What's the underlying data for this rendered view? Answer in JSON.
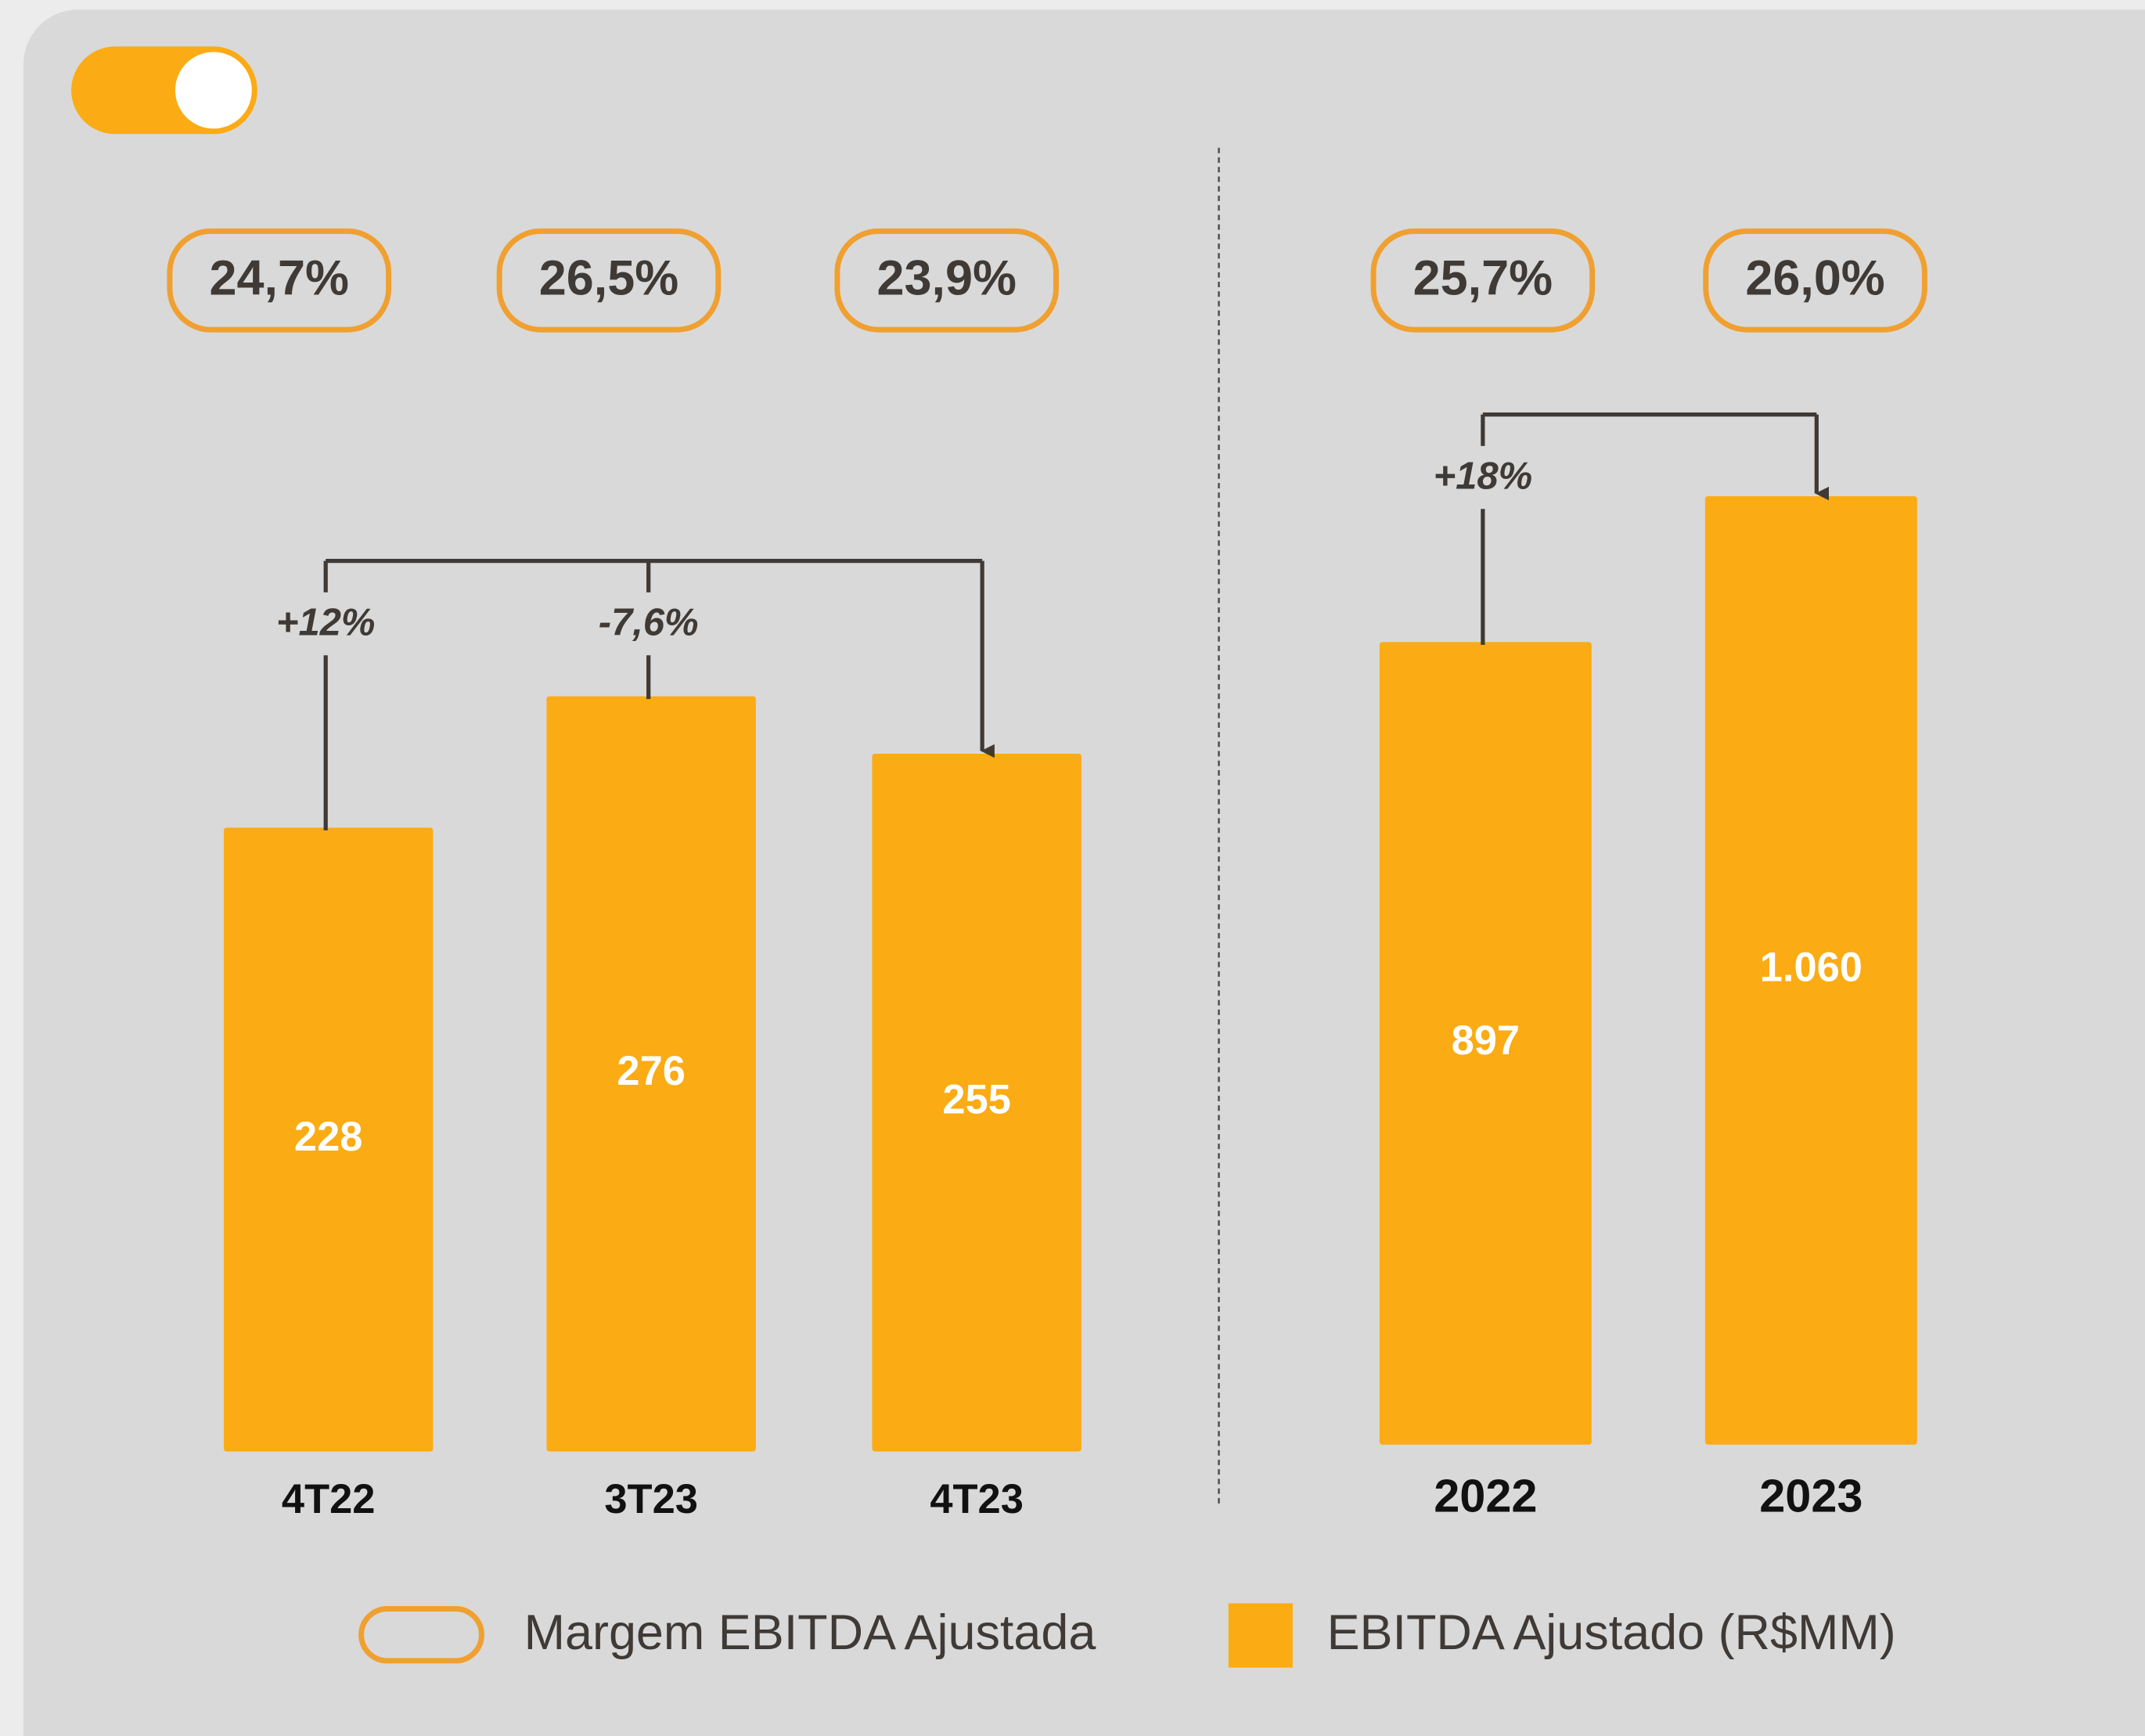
{
  "chart_data": [
    {
      "type": "bar",
      "categories": [
        "4T22",
        "3T23",
        "4T23"
      ],
      "series": [
        {
          "name": "Margem EBITDA Ajustada",
          "color": "#f0a030",
          "values": [
            24.7,
            26.5,
            23.9
          ],
          "value_labels": [
            "24,7%",
            "26,5%",
            "23,9%"
          ]
        },
        {
          "name": "EBITDA Ajustado (R$MM)",
          "color": "#fbab13",
          "values": [
            228,
            276,
            255
          ]
        }
      ],
      "annotations": [
        "+12%",
        "-7,6%"
      ]
    },
    {
      "type": "bar",
      "categories": [
        "2022",
        "2023"
      ],
      "series": [
        {
          "color": "#f0a030",
          "values": [
            25.7,
            26.0
          ],
          "value_labels": [
            "25,7%",
            "26,0%"
          ]
        },
        {
          "color": "#fbab13",
          "values": [
            897,
            1060
          ],
          "value_labels": [
            "897",
            "1.060"
          ]
        }
      ],
      "annotations": [
        "+18%"
      ]
    }
  ]
}
